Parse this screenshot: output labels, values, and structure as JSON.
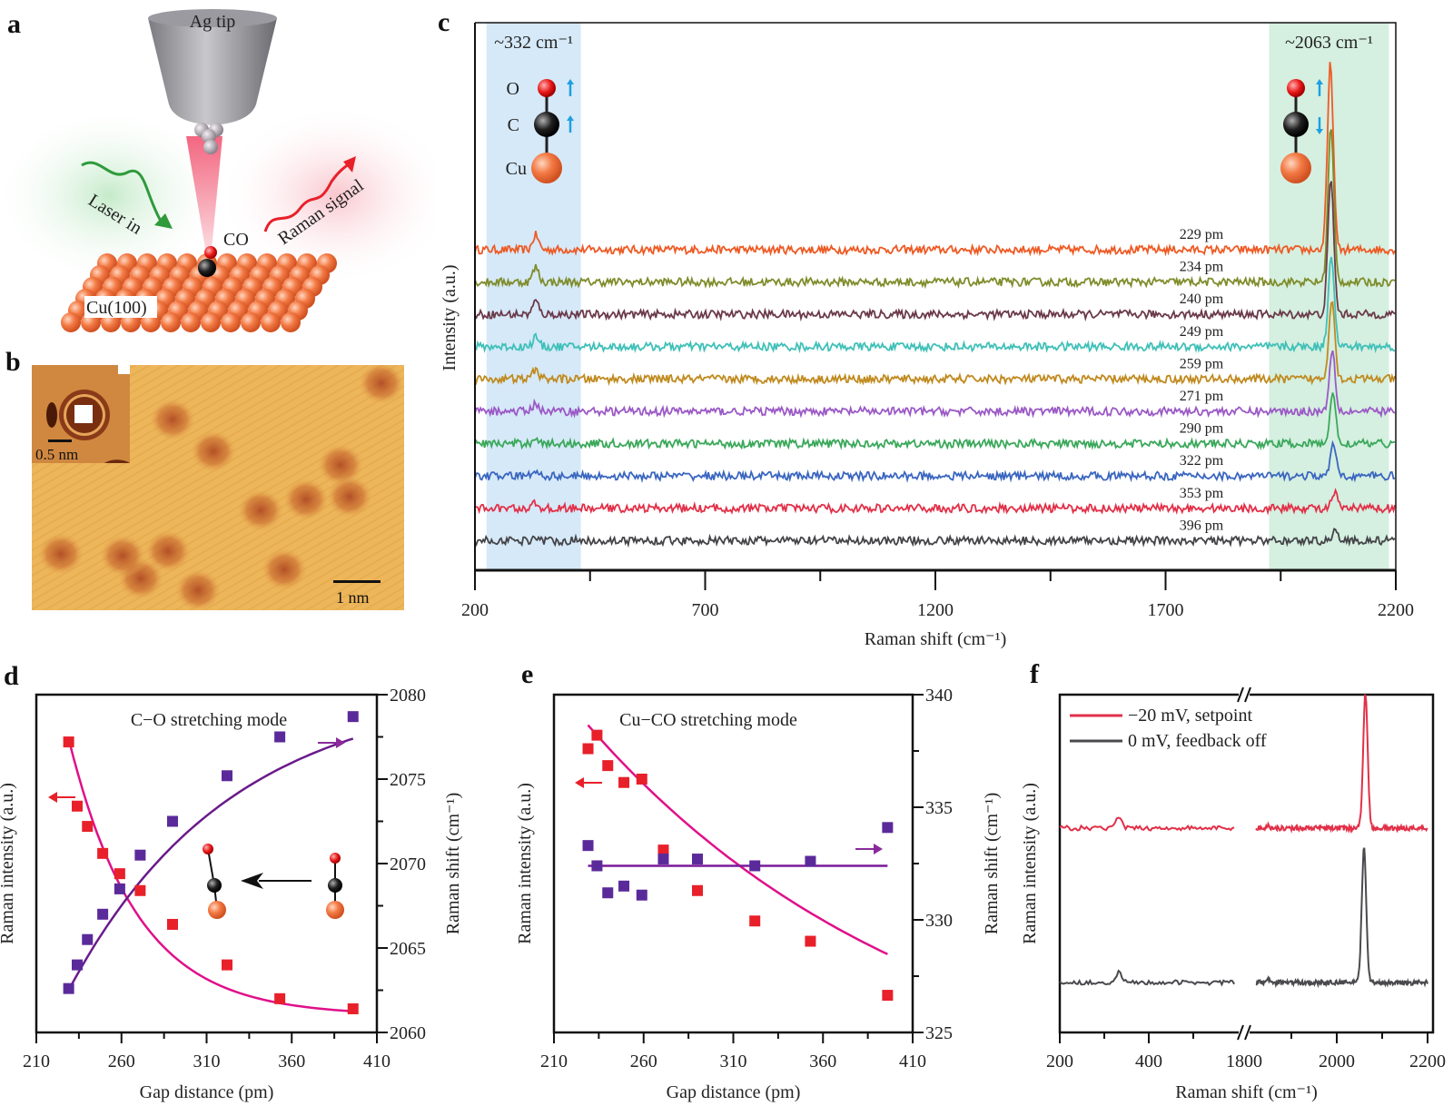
{
  "panels": {
    "a": {
      "label": "a",
      "tip_label": "Ag tip",
      "laser_label": "Laser in",
      "raman_label": "Raman signal",
      "molecule_label": "CO",
      "surface_label": "Cu(100)",
      "colors": {
        "laser": "#2e9a3a",
        "raman": "#e8202a",
        "copper": "#f07040",
        "tip": "#a0a0a4"
      }
    },
    "b": {
      "label": "b",
      "inset_scale": "0.5 nm",
      "main_scale": "1 nm",
      "colors": {
        "background": "#edb65a",
        "spot": "#b5502a"
      }
    },
    "f_label": "f",
    "d_label": "d",
    "e_label": "e",
    "c_label": "c"
  },
  "chart_data": [
    {
      "id": "c",
      "type": "line",
      "title": "",
      "xlabel": "Raman shift (cm⁻¹)",
      "ylabel": "Intensity (a.u.)",
      "xlim": [
        200,
        2200
      ],
      "xticks": [
        200,
        700,
        1200,
        1700,
        2200
      ],
      "x_minor_ticks": [
        450,
        950,
        1450,
        1950
      ],
      "highlight_bands": [
        {
          "label": "~332 cm⁻¹",
          "range": [
            225,
            430
          ],
          "color": "#d6e9f8",
          "mode": "Cu–CO stretch",
          "atoms": [
            "O",
            "C",
            "Cu"
          ],
          "arrows": [
            "up",
            "up"
          ]
        },
        {
          "label": "~2063 cm⁻¹",
          "range": [
            1925,
            2185
          ],
          "color": "#d5efe0",
          "mode": "C–O stretch",
          "arrows": [
            "up",
            "down"
          ]
        }
      ],
      "series": [
        {
          "name": "229 pm",
          "color": "#ee5a24",
          "low_peak": 0.9,
          "high_peak": 7.6,
          "peak_pos": 2058
        },
        {
          "name": "234 pm",
          "color": "#7f8c2a",
          "low_peak": 0.9,
          "high_peak": 6.3,
          "peak_pos": 2059
        },
        {
          "name": "240 pm",
          "color": "#6b3a4a",
          "low_peak": 0.8,
          "high_peak": 5.5,
          "peak_pos": 2059
        },
        {
          "name": "249 pm",
          "color": "#3fc0b8",
          "low_peak": 0.6,
          "high_peak": 3.8,
          "peak_pos": 2060
        },
        {
          "name": "259 pm",
          "color": "#c08a1e",
          "low_peak": 0.6,
          "high_peak": 3.3,
          "peak_pos": 2061
        },
        {
          "name": "271 pm",
          "color": "#9b59c6",
          "low_peak": 0.5,
          "high_peak": 2.5,
          "peak_pos": 2062
        },
        {
          "name": "290 pm",
          "color": "#3aa85a",
          "low_peak": 0.4,
          "high_peak": 2.0,
          "peak_pos": 2063
        },
        {
          "name": "322 pm",
          "color": "#3a66c0",
          "low_peak": 0.4,
          "high_peak": 1.25,
          "peak_pos": 2065
        },
        {
          "name": "353 pm",
          "color": "#e23048",
          "low_peak": 0.3,
          "high_peak": 0.6,
          "peak_pos": 2067
        },
        {
          "name": "396 pm",
          "color": "#444448",
          "low_peak": 0.25,
          "high_peak": 0.4,
          "peak_pos": 2068
        }
      ],
      "low_peak_position": 332
    },
    {
      "id": "d",
      "type": "scatter",
      "title": "C−O stretching mode",
      "xlabel": "Gap distance (pm)",
      "ylabel_left": "Raman intensity (a.u.)",
      "ylabel_right": "Raman shift (cm⁻¹)",
      "xlim": [
        210,
        410
      ],
      "xticks": [
        210,
        260,
        310,
        360,
        410
      ],
      "y_right_lim": [
        2060,
        2080
      ],
      "y_right_ticks": [
        2060,
        2065,
        2070,
        2075,
        2080
      ],
      "x": [
        229,
        234,
        240,
        249,
        259,
        271,
        290,
        322,
        353,
        396
      ],
      "series": [
        {
          "name": "Raman intensity",
          "axis": "left",
          "color": "#e8202a",
          "fit_color": "#e0108a",
          "values": [
            0.86,
            0.67,
            0.61,
            0.53,
            0.47,
            0.42,
            0.32,
            0.2,
            0.1,
            0.07
          ],
          "fit": "exponential-decay"
        },
        {
          "name": "Raman shift",
          "axis": "right",
          "color": "#5b2a9a",
          "fit_color": "#6a1a8a",
          "values": [
            2062.6,
            2064.0,
            2065.5,
            2067.0,
            2068.5,
            2070.5,
            2072.5,
            2075.2,
            2077.5,
            2078.7
          ],
          "fit": "saturation"
        }
      ],
      "annotations": [
        "left-arrow (intensity axis)",
        "right-arrow (shift axis)",
        "tilted CO ← upright CO"
      ]
    },
    {
      "id": "e",
      "type": "scatter",
      "title": "Cu−CO stretching mode",
      "xlabel": "Gap distance (pm)",
      "ylabel_left": "Raman intensity (a.u.)",
      "ylabel_right": "Raman shift (cm⁻¹)",
      "xlim": [
        210,
        410
      ],
      "xticks": [
        210,
        260,
        310,
        360,
        410
      ],
      "y_right_lim": [
        325,
        340
      ],
      "y_right_ticks": [
        325,
        330,
        335,
        340
      ],
      "x": [
        229,
        234,
        240,
        249,
        259,
        271,
        290,
        322,
        353,
        396
      ],
      "series": [
        {
          "name": "Raman intensity",
          "axis": "left",
          "color": "#e8202a",
          "fit_color": "#e0108a",
          "values": [
            0.84,
            0.88,
            0.79,
            0.74,
            0.75,
            0.54,
            0.42,
            0.33,
            0.27,
            0.11
          ],
          "fit": "exponential-decay"
        },
        {
          "name": "Raman shift",
          "axis": "right",
          "color": "#5b2a9a",
          "fit_color": "#7a1a9a",
          "values": [
            333.3,
            332.4,
            331.2,
            331.5,
            331.1,
            332.7,
            332.7,
            332.4,
            332.6,
            334.1
          ],
          "fit": "constant",
          "fit_value": 332.4
        }
      ]
    },
    {
      "id": "f",
      "type": "line",
      "title": "",
      "xlabel": "Raman shift (cm⁻¹)",
      "ylabel": "Raman intensity (a.u.)",
      "xlim_segments": [
        [
          200,
          600
        ],
        [
          1800,
          2200
        ]
      ],
      "xtick_labels": [
        "200",
        "400",
        "1800",
        "2000",
        "2200"
      ],
      "axis_break": true,
      "legend": "top-left",
      "series": [
        {
          "name": "−20 mV, setpoint",
          "color": "#e23048",
          "low_peak": 0.15,
          "high_peak": 1.0,
          "peak_pos": 2063
        },
        {
          "name": "0 mV, feedback off",
          "color": "#4a4a4e",
          "low_peak": 0.15,
          "high_peak": 1.0,
          "peak_pos": 2060
        }
      ]
    }
  ]
}
